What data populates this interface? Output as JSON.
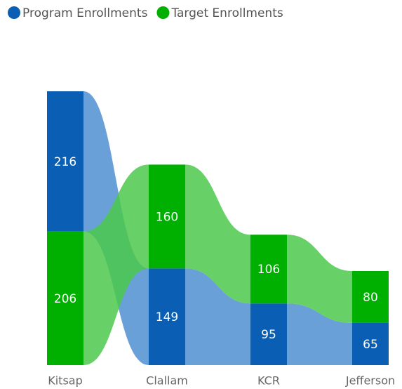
{
  "chart_data": {
    "type": "ribbon",
    "categories": [
      "Kitsap",
      "Clallam",
      "KCR",
      "Jefferson"
    ],
    "series": [
      {
        "name": "Program Enrollments",
        "color": "#0a5fb4",
        "ribbon_color": "#4f8fd0",
        "values": [
          216,
          149,
          95,
          65
        ]
      },
      {
        "name": "Target Enrollments",
        "color": "#00b000",
        "ribbon_color": "#4cc94c",
        "values": [
          206,
          160,
          106,
          80
        ]
      }
    ],
    "legend": "top-left"
  }
}
